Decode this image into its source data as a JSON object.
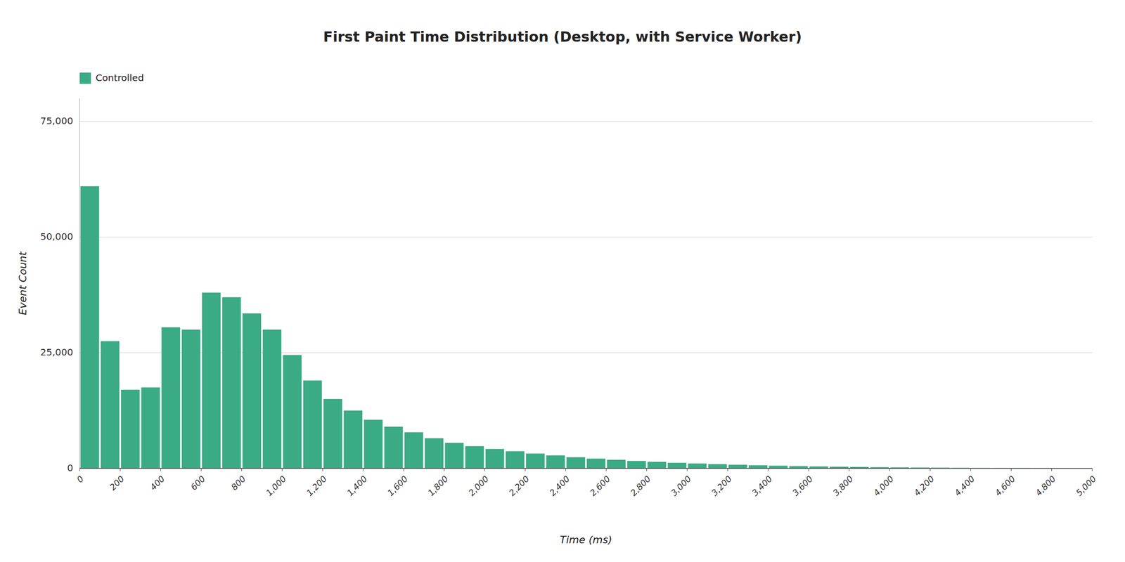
{
  "chart_data": {
    "type": "histogram",
    "title": "First Paint Time Distribution (Desktop, with Service Worker)",
    "x_label": "Time (ms)",
    "y_label": "Event Count",
    "bins": [
      0,
      100,
      200,
      300,
      400,
      500,
      600,
      700,
      800,
      900,
      1000,
      1100,
      1200,
      1300,
      1400,
      1500,
      1600,
      1700,
      1800,
      1900,
      2000,
      2100,
      2200,
      2300,
      2400,
      2500,
      2600,
      2700,
      2800,
      2900,
      3000,
      3100,
      3200,
      3300,
      3400,
      3500,
      3600,
      3700,
      3800,
      3900,
      4000,
      4100,
      4200,
      4300,
      4400,
      4500,
      4600,
      4700,
      4800,
      4900,
      5000
    ],
    "series": [
      {
        "name": "Controlled",
        "color": "#3aab84",
        "values": [
          61000,
          27500,
          17000,
          17500,
          30500,
          30000,
          38000,
          37000,
          33500,
          30000,
          24500,
          19000,
          15000,
          12500,
          10500,
          9000,
          7800,
          6500,
          5500,
          4800,
          4200,
          3700,
          3200,
          2800,
          2400,
          2100,
          1850,
          1600,
          1400,
          1200,
          1050,
          900,
          780,
          670,
          570,
          480,
          410,
          350,
          300,
          250,
          210,
          180,
          155,
          130,
          110,
          90,
          75,
          60,
          50,
          35
        ]
      }
    ],
    "xlim": [
      0,
      5000
    ],
    "xticks": [
      0,
      200,
      400,
      600,
      800,
      {
        "value": 1000,
        "label": "1,000"
      },
      {
        "value": 1200,
        "label": "1,200"
      },
      {
        "value": 1400,
        "label": "1,400"
      },
      {
        "value": 1600,
        "label": "1,600"
      },
      {
        "value": 1800,
        "label": "1,800"
      },
      {
        "value": 2000,
        "label": "2,000"
      },
      {
        "value": 2200,
        "label": "2,200"
      },
      {
        "value": 2400,
        "label": "2,400"
      },
      {
        "value": 2600,
        "label": "2,600"
      },
      {
        "value": 2800,
        "label": "2,800"
      },
      {
        "value": 3000,
        "label": "3,000"
      },
      {
        "value": 3200,
        "label": "3,200"
      },
      {
        "value": 3400,
        "label": "3,400"
      },
      {
        "value": 3600,
        "label": "3,600"
      },
      {
        "value": 3800,
        "label": "3,800"
      },
      {
        "value": 4000,
        "label": "4,000"
      },
      {
        "value": 4200,
        "label": "4,200"
      },
      {
        "value": 4400,
        "label": "4,400"
      },
      {
        "value": 4600,
        "label": "4,600"
      },
      {
        "value": 4800,
        "label": "4,800"
      },
      {
        "value": 5000,
        "label": "5,000"
      }
    ],
    "ylim": [
      0,
      80000
    ],
    "yticks": [
      0,
      {
        "value": 25000,
        "label": "25,000"
      },
      {
        "value": 50000,
        "label": "50,000"
      },
      {
        "value": 75000,
        "label": "75,000"
      }
    ],
    "grid": true,
    "legend": "upper left"
  }
}
